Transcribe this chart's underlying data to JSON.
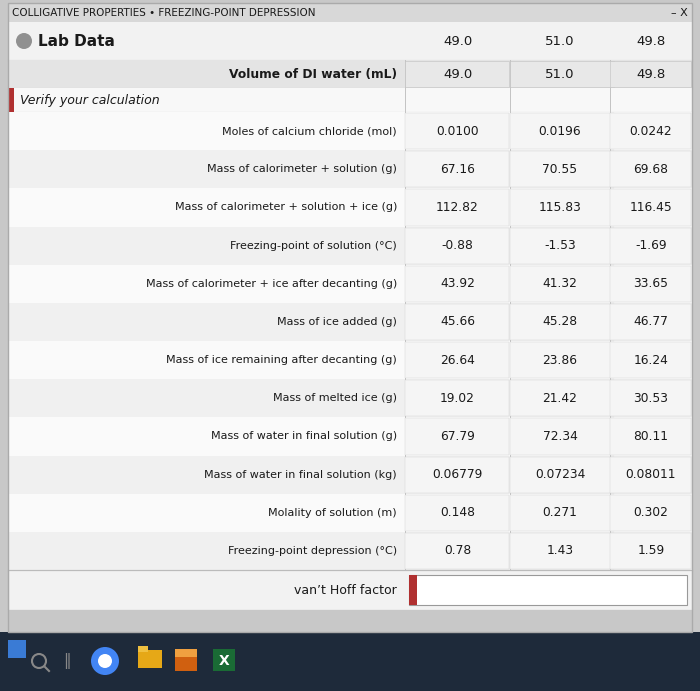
{
  "title": "COLLIGATIVE PROPERTIES • FREEZING-POINT DEPRESSION",
  "section_header": "Lab Data",
  "subsection": "Verify your calculation",
  "col_values": [
    "49.0",
    "51.0",
    "49.8"
  ],
  "rows": [
    {
      "label": "Moles of calcium chloride (mol)",
      "values": [
        "0.0100",
        "0.0196",
        "0.0242"
      ]
    },
    {
      "label": "Mass of calorimeter + solution (g)",
      "values": [
        "67.16",
        "70.55",
        "69.68"
      ]
    },
    {
      "label": "Mass of calorimeter + solution + ice (g)",
      "values": [
        "112.82",
        "115.83",
        "116.45"
      ]
    },
    {
      "label": "Freezing-point of solution (°C)",
      "values": [
        "-0.88",
        "-1.53",
        "-1.69"
      ]
    },
    {
      "label": "Mass of calorimeter + ice after decanting (g)",
      "values": [
        "43.92",
        "41.32",
        "33.65"
      ]
    },
    {
      "label": "Mass of ice added (g)",
      "values": [
        "45.66",
        "45.28",
        "46.77"
      ]
    },
    {
      "label": "Mass of ice remaining after decanting (g)",
      "values": [
        "26.64",
        "23.86",
        "16.24"
      ]
    },
    {
      "label": "Mass of melted ice (g)",
      "values": [
        "19.02",
        "21.42",
        "30.53"
      ]
    },
    {
      "label": "Mass of water in final solution (g)",
      "values": [
        "67.79",
        "72.34",
        "80.11"
      ]
    },
    {
      "label": "Mass of water in final solution (kg)",
      "values": [
        "0.06779",
        "0.07234",
        "0.08011"
      ]
    },
    {
      "label": "Molality of solution (m)",
      "values": [
        "0.148",
        "0.271",
        "0.302"
      ]
    },
    {
      "label": "Freezing-point depression (°C)",
      "values": [
        "0.78",
        "1.43",
        "1.59"
      ]
    }
  ],
  "footer_label": "van’t Hoff factor",
  "bg_gray": "#c8c8c8",
  "panel_white": "#f0f0f0",
  "title_bar_bg": "#d8d8d8",
  "lab_header_bg": "#f2f2f2",
  "vol_row_bg": "#e4e4e4",
  "verify_row_bg": "#f8f8f8",
  "data_row_bg1": "#fafafa",
  "data_row_bg2": "#f0f0f0",
  "footer_bg": "#f2f2f2",
  "accent_red": "#b03030",
  "cell_bg": "#f5f5f5",
  "grid_color": "#cccccc",
  "taskbar_bg": "#1e2a3a",
  "text_dark": "#1a1a1a",
  "text_medium": "#333333"
}
